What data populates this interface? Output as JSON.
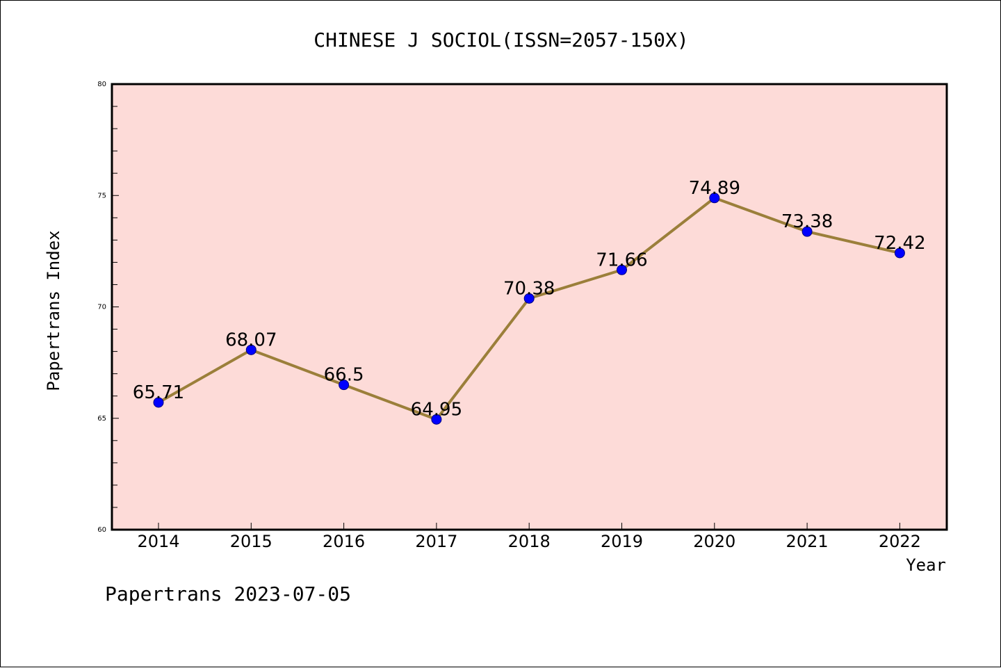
{
  "chart_data": {
    "type": "line",
    "title": "CHINESE J SOCIOL(ISSN=2057-150X)",
    "xlabel": "Year",
    "ylabel": "Papertrans Index",
    "categories": [
      "2014",
      "2015",
      "2016",
      "2017",
      "2018",
      "2019",
      "2020",
      "2021",
      "2022"
    ],
    "series": [
      {
        "values": [
          65.71,
          68.07,
          66.5,
          64.95,
          70.38,
          71.66,
          74.89,
          73.38,
          72.42
        ],
        "labels": [
          "65.71",
          "68.07",
          "66.5",
          "64.95",
          "70.38",
          "71.66",
          "74.89",
          "73.38",
          "72.42"
        ]
      }
    ],
    "ylim": [
      60,
      80
    ],
    "y_ticks": [
      "60",
      "65",
      "70",
      "75",
      "80"
    ],
    "grid": false,
    "colors": {
      "plot_background": "#fddbd8",
      "line": "#9b7f3a",
      "marker": "#0000ff",
      "marker_edge": "#000080"
    }
  },
  "footer": {
    "text": "Papertrans 2023-07-05"
  }
}
